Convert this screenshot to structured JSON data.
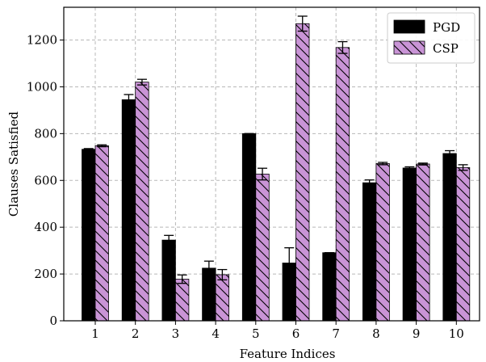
{
  "chart_data": {
    "type": "bar",
    "xlabel": "Feature Indices",
    "ylabel": "Clauses Satisfied",
    "categories": [
      "1",
      "2",
      "3",
      "4",
      "5",
      "6",
      "7",
      "8",
      "9",
      "10"
    ],
    "ylim": [
      0,
      1340
    ],
    "yticks": [
      0,
      200,
      400,
      600,
      800,
      1000,
      1200
    ],
    "grid": true,
    "legend_position": "top-right",
    "series": [
      {
        "name": "PGD",
        "color": "#000000",
        "pattern": "solid",
        "values": [
          733,
          945,
          345,
          225,
          800,
          247,
          291,
          590,
          653,
          715
        ],
        "errors": [
          3,
          22,
          20,
          30,
          0,
          65,
          0,
          12,
          5,
          12
        ]
      },
      {
        "name": "CSP",
        "color": "#c994d6",
        "pattern": "diagonal-hatch",
        "values": [
          748,
          1020,
          178,
          197,
          627,
          1270,
          1168,
          672,
          670,
          655
        ],
        "errors": [
          4,
          12,
          18,
          22,
          25,
          32,
          25,
          5,
          4,
          12
        ]
      }
    ]
  }
}
